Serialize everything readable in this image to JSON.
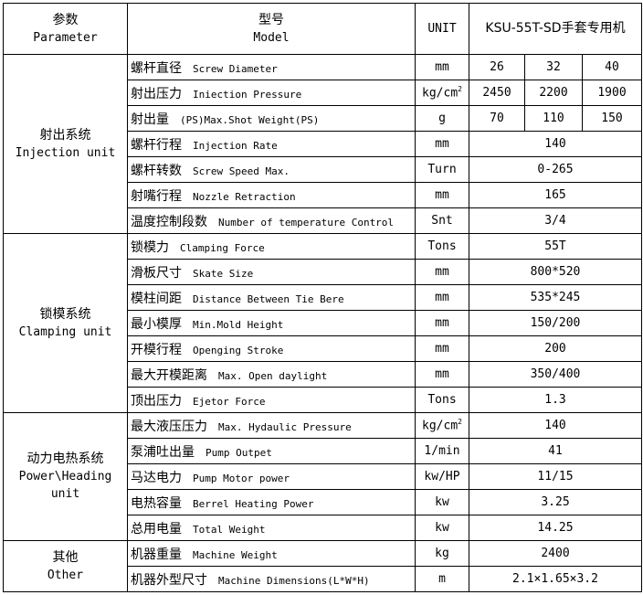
{
  "header": {
    "parameter_cn": "参数",
    "parameter_en": "Parameter",
    "model_cn": "型号",
    "model_en": "Model",
    "unit": "UNIT",
    "machine": "KSU-55T-SD手套专用机"
  },
  "groups": [
    {
      "cn": "射出系统",
      "en": "Injection unit",
      "rows": [
        {
          "cn": "螺杆直径",
          "en": "Screw Diameter",
          "unit": "mm",
          "values": [
            "26",
            "32",
            "40"
          ]
        },
        {
          "cn": "射出压力",
          "en": "Iniection Pressure",
          "unit": "kg/cm",
          "unit_sup": "2",
          "values": [
            "2450",
            "2200",
            "1900"
          ]
        },
        {
          "cn": "射出量",
          "en": "(PS)Max.Shot Weight(PS)",
          "unit": "g",
          "values": [
            "70",
            "110",
            "150"
          ]
        },
        {
          "cn": "螺杆行程",
          "en": "Injection  Rate",
          "unit": "mm",
          "value": "140"
        },
        {
          "cn": "螺杆转数",
          "en": "Screw Speed Max.",
          "unit": "Turn",
          "value": "0-265"
        },
        {
          "cn": "射嘴行程",
          "en": "Nozzle  Retraction",
          "unit": "mm",
          "value": "165"
        },
        {
          "cn": "温度控制段数",
          "en": "Number of temperature Control",
          "unit": "Snt",
          "value": "3/4"
        }
      ]
    },
    {
      "cn": "锁模系统",
      "en": "Clamping unit",
      "rows": [
        {
          "cn": "锁模力",
          "en": "Clamping Force",
          "unit": "Tons",
          "value": "55T"
        },
        {
          "cn": "滑板尺寸",
          "en": "Skate Size",
          "unit": "mm",
          "value": "800*520"
        },
        {
          "cn": "模柱间距",
          "en": "Distance Between Tie Bere",
          "unit": "mm",
          "value": "535*245"
        },
        {
          "cn": "最小模厚",
          "en": "Min.Mold Height",
          "unit": "mm",
          "value": "150/200"
        },
        {
          "cn": "开模行程",
          "en": "Openging Stroke",
          "unit": "mm",
          "value": "200"
        },
        {
          "cn": "最大开模距离",
          "en": "Max. Open daylight",
          "unit": "mm",
          "value": "350/400"
        },
        {
          "cn": "顶出压力",
          "en": "Ejetor Force",
          "unit": "Tons",
          "value": "1.3"
        }
      ]
    },
    {
      "cn": "动力电热系统",
      "en": "Power\\Heading",
      "en2": "unit",
      "rows": [
        {
          "cn": "最大液压压力",
          "en": "Max. Hydaulic Pressure",
          "unit": "kg/cm",
          "unit_sup": "2",
          "value": "140"
        },
        {
          "cn": "泵浦吐出量",
          "en": "Pump Outpet",
          "unit": "1/min",
          "value": "41"
        },
        {
          "cn": "马达电力",
          "en": "Pump Motor power",
          "unit": "kw/HP",
          "value": "11/15"
        },
        {
          "cn": "电热容量",
          "en": "Berrel Heating Power",
          "unit": "kw",
          "value": "3.25"
        },
        {
          "cn": "总用电量",
          "en": "Total Weight",
          "unit": "kw",
          "value": "14.25"
        }
      ]
    },
    {
      "cn": "其他",
      "en": "Other",
      "rows": [
        {
          "cn": "机器重量",
          "en": "Machine Weight",
          "unit": "kg",
          "value": "2400"
        },
        {
          "cn": "机器外型尺寸",
          "en": "Machine Dimensions(L*W*H)",
          "unit": "m",
          "value": "2.1×1.65×3.2"
        }
      ]
    }
  ]
}
